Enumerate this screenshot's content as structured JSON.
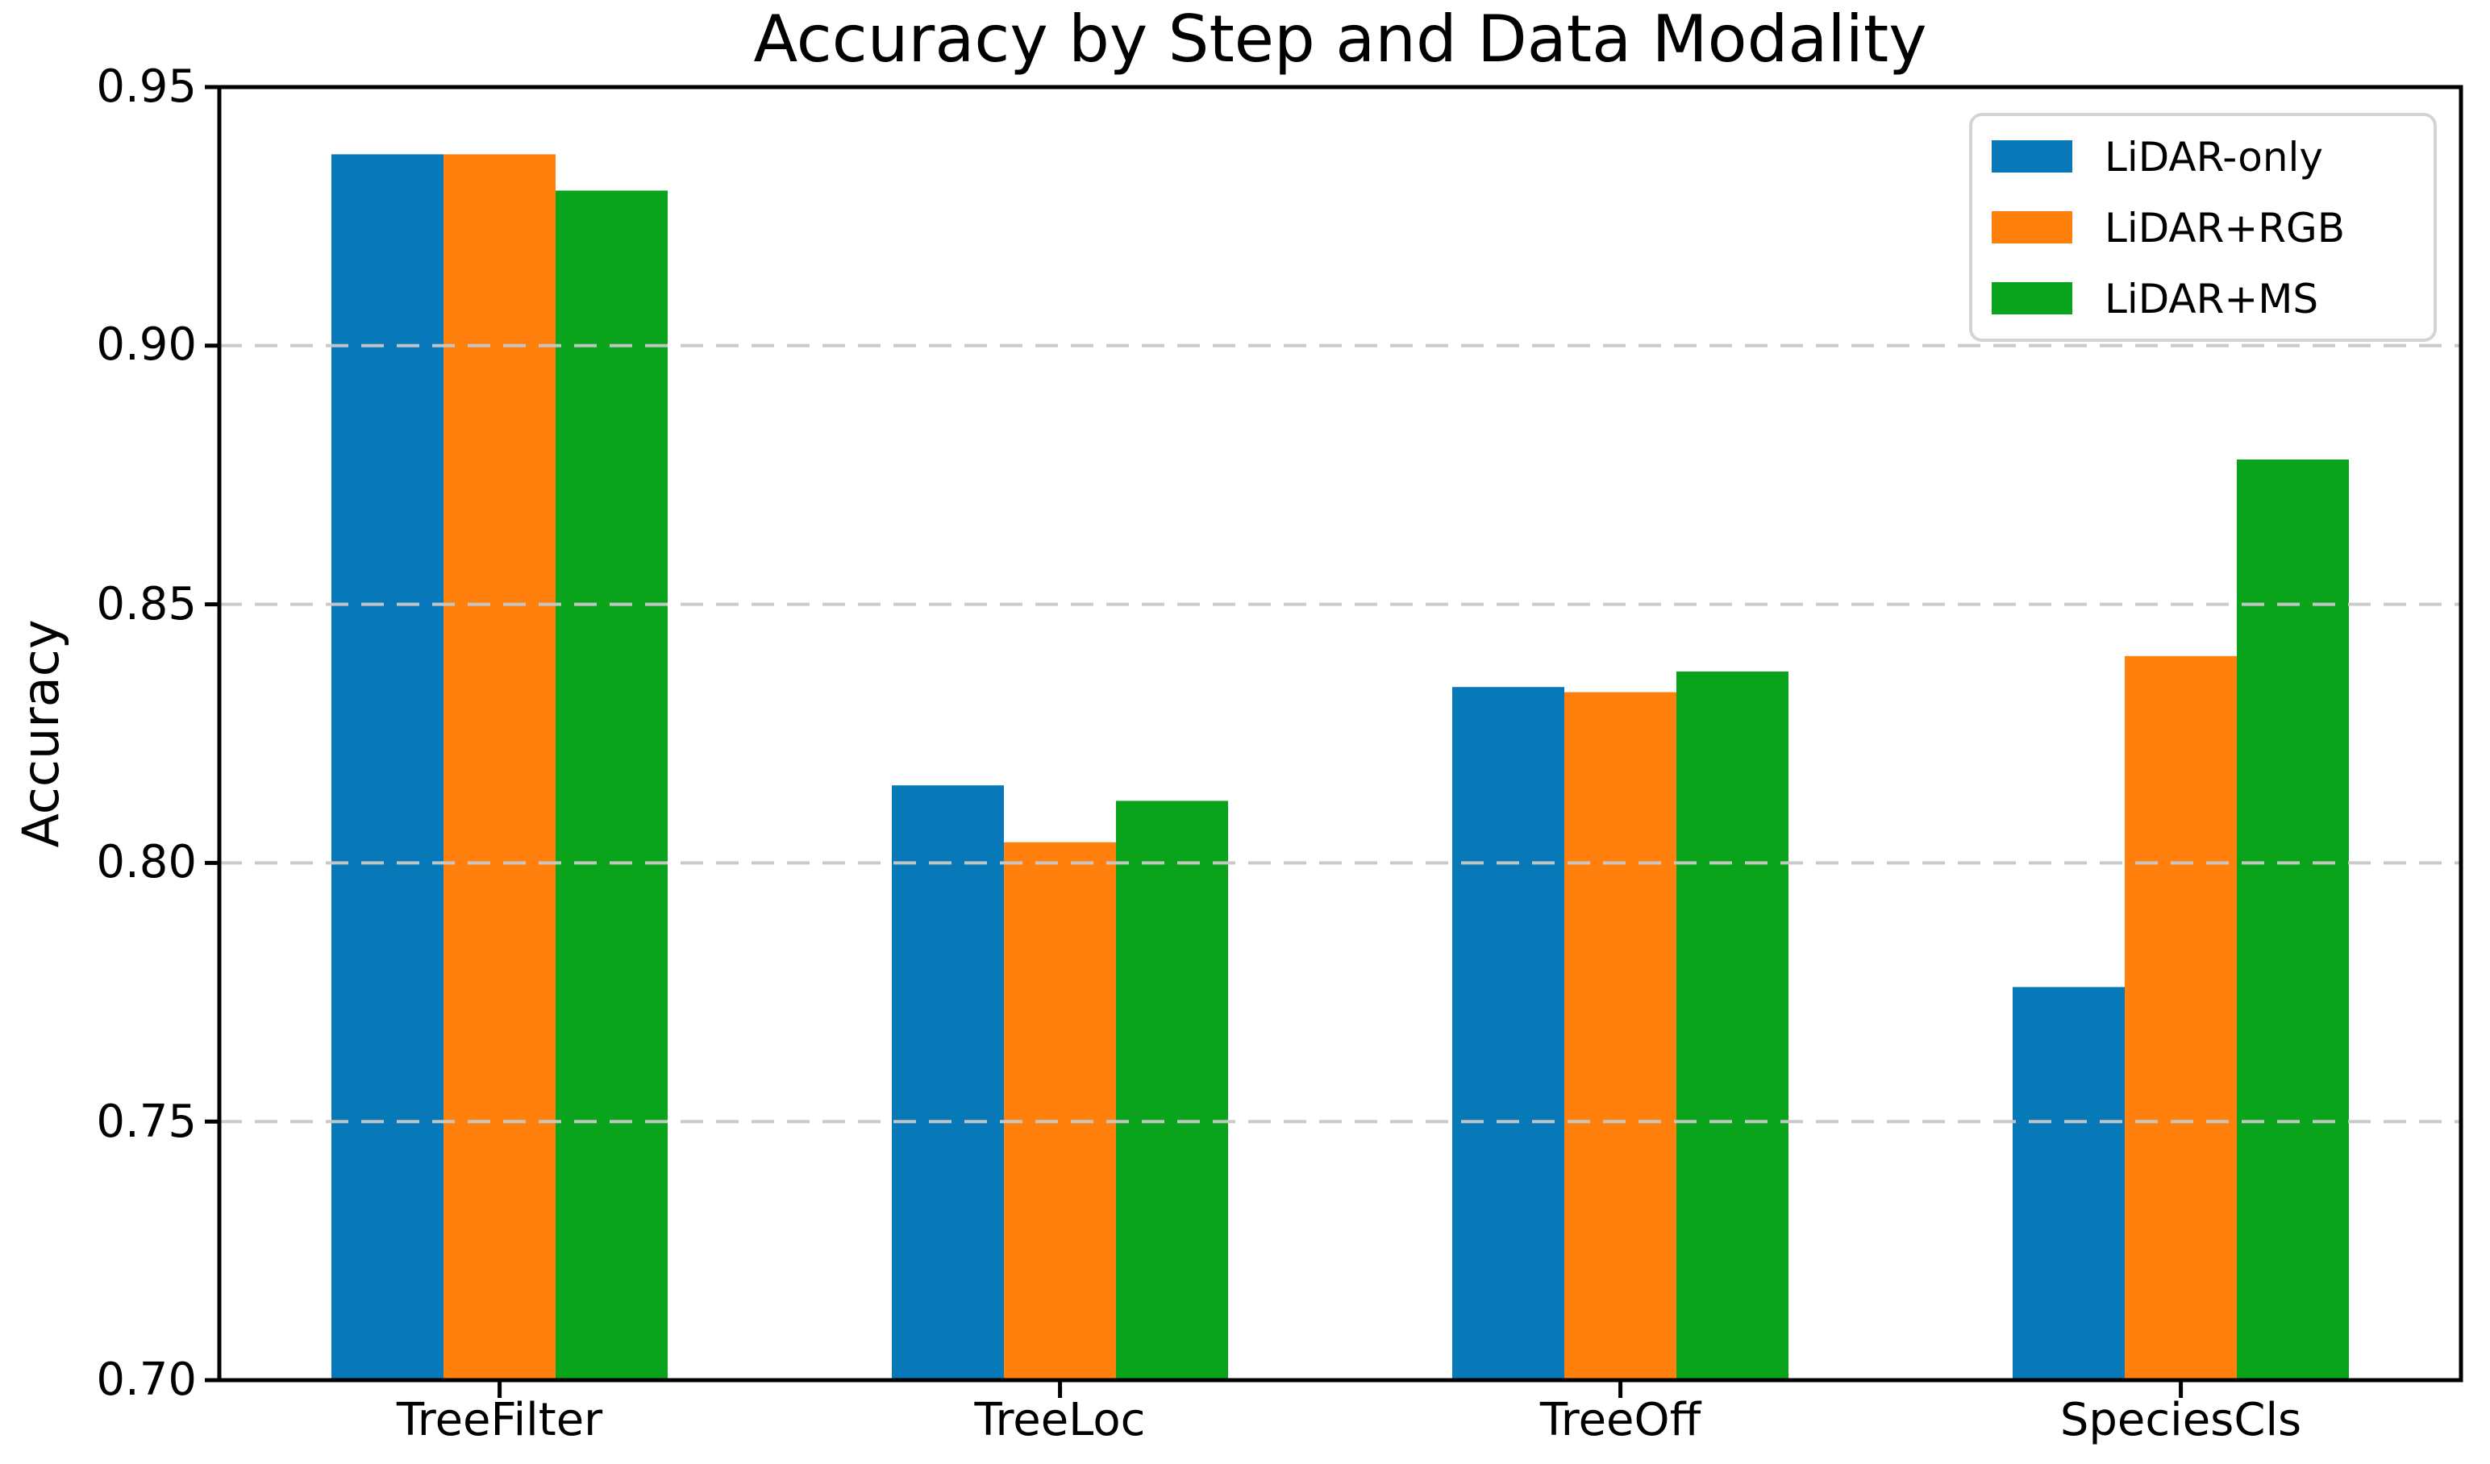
{
  "figure": {
    "background": "#ffffff",
    "title": "Accuracy by Step and Data Modality"
  },
  "chart_data": {
    "type": "bar",
    "title": "Accuracy by Step and Data Modality",
    "xlabel": "",
    "ylabel": "Accuracy",
    "categories": [
      "TreeFilter",
      "TreeLoc",
      "TreeOff",
      "SpeciesCls"
    ],
    "series": [
      {
        "name": "LiDAR-only",
        "color": "#0778b8",
        "values": [
          0.937,
          0.815,
          0.834,
          0.776
        ]
      },
      {
        "name": "LiDAR+RGB",
        "color": "#ff800d",
        "values": [
          0.937,
          0.804,
          0.833,
          0.84
        ]
      },
      {
        "name": "LiDAR+MS",
        "color": "#0aa31c",
        "values": [
          0.93,
          0.812,
          0.837,
          0.878
        ]
      }
    ],
    "ylim": [
      0.7,
      0.95
    ],
    "yticks": [
      0.7,
      0.75,
      0.8,
      0.85,
      0.9,
      0.95
    ],
    "ytick_labels": [
      "0.70",
      "0.75",
      "0.80",
      "0.85",
      "0.90",
      "0.95"
    ],
    "grid": {
      "axis": "y",
      "style": "dashed",
      "color": "#c9c9c9",
      "drawn_above_bars": true
    },
    "legend": {
      "location": "upper right",
      "border_color": "#d4d4d4",
      "background": "#ffffff"
    },
    "bar_width_fraction_of_category": 0.2,
    "axes": {
      "spine_color": "#000000",
      "tick_color": "#000000",
      "background": "#ffffff"
    }
  }
}
